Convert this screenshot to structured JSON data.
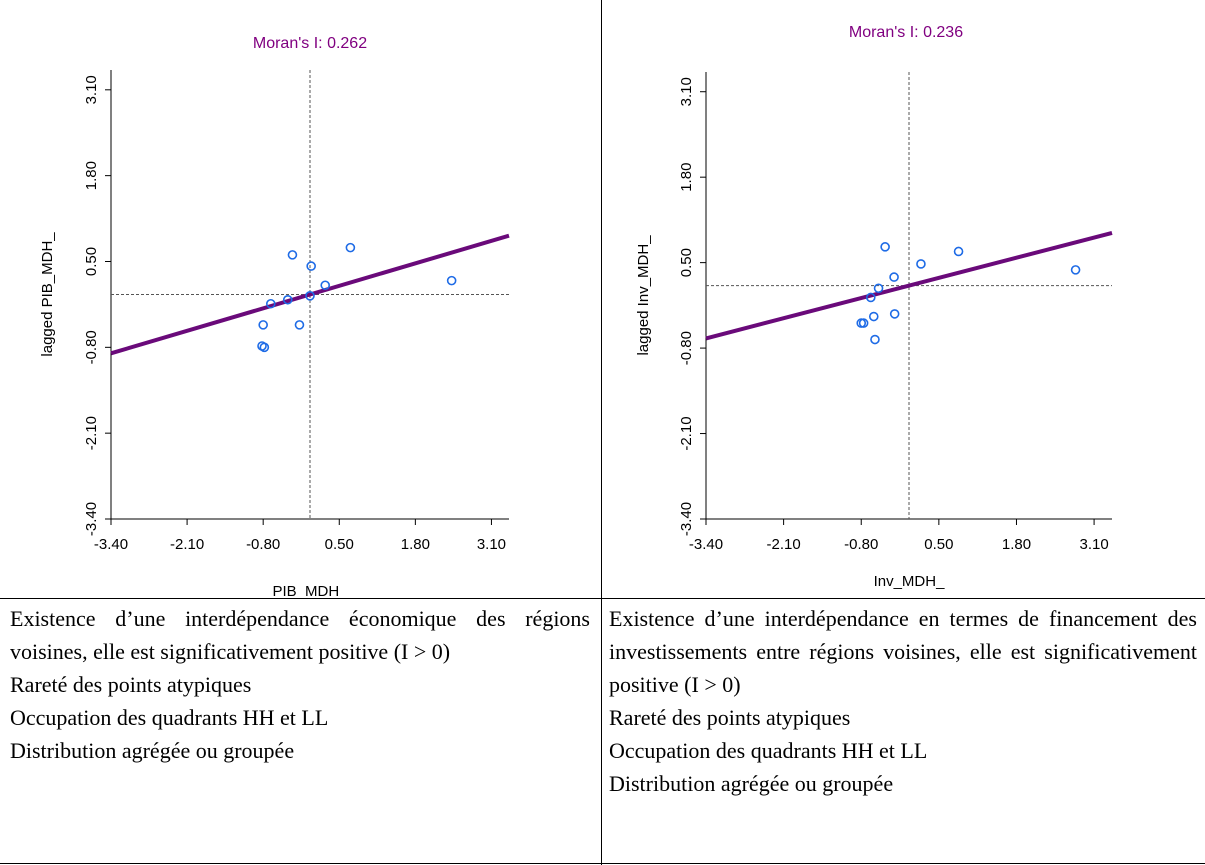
{
  "chart_data": [
    {
      "type": "scatter",
      "title": "Moran's I: 0.262",
      "xlabel": "PIB_MDH_",
      "ylabel": "lagged PIB_MDH_",
      "xlim": [
        -3.4,
        3.4
      ],
      "ylim": [
        -3.4,
        3.4
      ],
      "x_ticks": [
        "-3.40",
        "-2.10",
        "-0.80",
        "0.50",
        "1.80",
        "3.10"
      ],
      "y_ticks": [
        "-3.40",
        "-2.10",
        "-0.80",
        "0.50",
        "1.80",
        "3.10"
      ],
      "title_color": "#800080",
      "point_color": "#1e6be6",
      "line_color": "#6a0a7a",
      "reference_lines": {
        "x": 0.0,
        "y": 0.0
      },
      "regression": {
        "slope": 0.262,
        "intercept": 0.0
      },
      "points": [
        {
          "x": -0.82,
          "y": -0.78
        },
        {
          "x": -0.78,
          "y": -0.8
        },
        {
          "x": -0.8,
          "y": -0.46
        },
        {
          "x": -0.67,
          "y": -0.14
        },
        {
          "x": -0.38,
          "y": -0.08
        },
        {
          "x": -0.3,
          "y": 0.6
        },
        {
          "x": -0.18,
          "y": -0.46
        },
        {
          "x": 0.0,
          "y": -0.02
        },
        {
          "x": 0.02,
          "y": 0.43
        },
        {
          "x": 0.26,
          "y": 0.14
        },
        {
          "x": 0.69,
          "y": 0.71
        },
        {
          "x": 2.42,
          "y": 0.21
        }
      ]
    },
    {
      "type": "scatter",
      "title": "Moran's I: 0.236",
      "xlabel": "Inv_MDH_",
      "ylabel": "lagged Inv_MDH_",
      "xlim": [
        -3.4,
        3.4
      ],
      "ylim": [
        -3.4,
        3.4
      ],
      "x_ticks": [
        "-3.40",
        "-2.10",
        "-0.80",
        "0.50",
        "1.80",
        "3.10"
      ],
      "y_ticks": [
        "-3.40",
        "-2.10",
        "-0.80",
        "0.50",
        "1.80",
        "3.10"
      ],
      "title_color": "#800080",
      "point_color": "#1e6be6",
      "line_color": "#6a0a7a",
      "reference_lines": {
        "x": 0.0,
        "y": 0.15
      },
      "regression": {
        "slope": 0.236,
        "intercept": 0.15
      },
      "points": [
        {
          "x": -0.8,
          "y": -0.42
        },
        {
          "x": -0.76,
          "y": -0.42
        },
        {
          "x": -0.57,
          "y": -0.67
        },
        {
          "x": -0.59,
          "y": -0.32
        },
        {
          "x": -0.51,
          "y": 0.11
        },
        {
          "x": -0.64,
          "y": -0.03
        },
        {
          "x": -0.25,
          "y": 0.28
        },
        {
          "x": -0.24,
          "y": -0.28
        },
        {
          "x": -0.4,
          "y": 0.74
        },
        {
          "x": 0.2,
          "y": 0.48
        },
        {
          "x": 0.83,
          "y": 0.67
        },
        {
          "x": 2.79,
          "y": 0.39
        }
      ]
    }
  ],
  "descriptions": [
    {
      "intro": "Existence d’une interdépendance économique des régions voisines, elle est significativement positive (I > 0)",
      "bullets": [
        "Rareté des points atypiques",
        "Occupation des quadrants HH et LL",
        "Distribution agrégée ou groupée"
      ]
    },
    {
      "intro": "Existence d’une interdépendance en termes de financement des investissements entre régions voisines, elle est significativement positive (I > 0)",
      "bullets": [
        "Rareté des points atypiques",
        "Occupation des quadrants HH et LL",
        "Distribution agrégée ou groupée"
      ]
    }
  ]
}
